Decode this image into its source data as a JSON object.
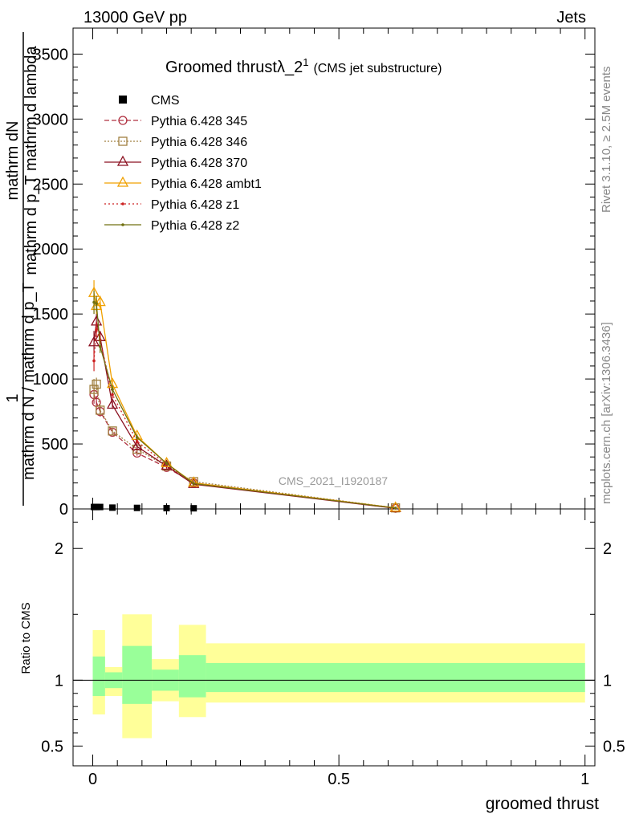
{
  "header": {
    "left": "13000 GeV pp",
    "right": "Jets"
  },
  "side": {
    "rivet": "Rivet 3.1.10, ≥ 2.5M events",
    "mcplots": "mcplots.cern.ch [arXiv:1306.3436]"
  },
  "chart_data": {
    "type": "line",
    "title": "Groomed thrustλ_2",
    "title_sup": "1",
    "subtitle": "(CMS jet substructure)",
    "watermark": "CMS_2021_I1920187",
    "xlabel": "groomed thrust",
    "ylabel_top_1": "1",
    "ylabel_top_2": "mathrm dN",
    "ylabel_bot_1": "mathrm d N / mathrm d p_T",
    "ylabel_bot_2": "mathrm d p_T mathrm d lambda",
    "ratio_ylabel": "Ratio to CMS",
    "xlim": [
      -0.04,
      1.02
    ],
    "ylim": [
      0,
      3700
    ],
    "ratio_ylim": [
      0.35,
      2.3
    ],
    "x_ticks": [
      0,
      0.5,
      1
    ],
    "x_tick_labels": [
      "0",
      "0.5",
      "1"
    ],
    "y_ticks": [
      0,
      500,
      1000,
      1500,
      2000,
      2500,
      3000,
      3500
    ],
    "y_tick_labels": [
      "0",
      "500",
      "1000",
      "1500",
      "2000",
      "2500",
      "3000",
      "3500"
    ],
    "ratio_ticks": [
      0.5,
      1,
      2
    ],
    "ratio_tick_labels": [
      "0.5",
      "1",
      "2"
    ],
    "legend_position": "top-left",
    "cms": {
      "name": "CMS",
      "x": [
        0.0025,
        0.0075,
        0.015,
        0.04,
        0.09,
        0.15,
        0.205
      ],
      "y": [
        15,
        15,
        15,
        10,
        8,
        6,
        5
      ]
    },
    "series": [
      {
        "name": "Pythia 6.428 345",
        "color": "#b03040",
        "dash": "6,3",
        "marker": "circle",
        "x": [
          0.0025,
          0.0075,
          0.015,
          0.04,
          0.09,
          0.15,
          0.205,
          0.615
        ],
        "y": [
          880,
          820,
          750,
          590,
          430,
          320,
          200,
          5
        ],
        "err": [
          70,
          50,
          40,
          25,
          20,
          15,
          10,
          2
        ]
      },
      {
        "name": "Pythia 6.428 346",
        "color": "#a08040",
        "dash": "2,2",
        "marker": "square",
        "x": [
          0.0025,
          0.0075,
          0.015,
          0.04,
          0.09,
          0.15,
          0.205,
          0.615
        ],
        "y": [
          920,
          960,
          760,
          600,
          460,
          330,
          210,
          8
        ],
        "err": [
          80,
          50,
          40,
          25,
          20,
          15,
          10,
          2
        ]
      },
      {
        "name": "Pythia 6.428 370",
        "color": "#8b1020",
        "dash": "",
        "marker": "triangle",
        "x": [
          0.0025,
          0.0075,
          0.015,
          0.04,
          0.09,
          0.15,
          0.205,
          0.615
        ],
        "y": [
          1280,
          1440,
          1320,
          800,
          480,
          330,
          190,
          5
        ],
        "err": [
          90,
          60,
          50,
          30,
          20,
          15,
          10,
          2
        ]
      },
      {
        "name": "Pythia 6.428 ambt1",
        "color": "#f0a000",
        "dash": "",
        "marker": "triangle",
        "x": [
          0.0025,
          0.0075,
          0.015,
          0.04,
          0.09,
          0.15,
          0.205,
          0.615
        ],
        "y": [
          1660,
          1560,
          1590,
          960,
          560,
          350,
          200,
          8
        ],
        "err": [
          100,
          60,
          50,
          30,
          20,
          15,
          10,
          2
        ]
      },
      {
        "name": "Pythia 6.428 z1",
        "color": "#cc2020",
        "dash": "2,3",
        "marker": "dot",
        "x": [
          0.0025,
          0.0075,
          0.015,
          0.04,
          0.09,
          0.15,
          0.205,
          0.615
        ],
        "y": [
          1140,
          1380,
          1300,
          880,
          520,
          340,
          195,
          6
        ],
        "err": [
          80,
          60,
          50,
          30,
          20,
          15,
          10,
          2
        ]
      },
      {
        "name": "Pythia 6.428 z2",
        "color": "#707010",
        "dash": "",
        "marker": "dot",
        "x": [
          0.0025,
          0.0075,
          0.015,
          0.04,
          0.09,
          0.15,
          0.205,
          0.615
        ],
        "y": [
          1590,
          1580,
          1250,
          920,
          550,
          350,
          195,
          7
        ],
        "err": [
          90,
          60,
          50,
          30,
          20,
          15,
          10,
          2
        ]
      }
    ],
    "ratio_bands": [
      {
        "x0": 0.0,
        "x1": 0.025,
        "yellow": [
          0.74,
          1.38
        ],
        "green": [
          0.88,
          1.18
        ]
      },
      {
        "x0": 0.025,
        "x1": 0.06,
        "yellow": [
          0.88,
          1.1
        ],
        "green": [
          0.94,
          1.06
        ]
      },
      {
        "x0": 0.06,
        "x1": 0.12,
        "yellow": [
          0.56,
          1.5
        ],
        "green": [
          0.82,
          1.26
        ]
      },
      {
        "x0": 0.12,
        "x1": 0.175,
        "yellow": [
          0.84,
          1.16
        ],
        "green": [
          0.92,
          1.08
        ]
      },
      {
        "x0": 0.175,
        "x1": 0.23,
        "yellow": [
          0.72,
          1.42
        ],
        "green": [
          0.87,
          1.19
        ]
      },
      {
        "x0": 0.23,
        "x1": 1.0,
        "yellow": [
          0.83,
          1.28
        ],
        "green": [
          0.91,
          1.13
        ]
      }
    ]
  }
}
